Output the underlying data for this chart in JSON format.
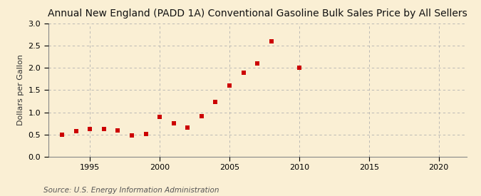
{
  "title": "Annual New England (PADD 1A) Conventional Gasoline Bulk Sales Price by All Sellers",
  "ylabel": "Dollars per Gallon",
  "source": "Source: U.S. Energy Information Administration",
  "background_color": "#faefd4",
  "plot_bg_color": "#faefd4",
  "years": [
    1993,
    1994,
    1995,
    1996,
    1997,
    1998,
    1999,
    2000,
    2001,
    2002,
    2003,
    2004,
    2005,
    2006,
    2007,
    2008,
    2010
  ],
  "values": [
    0.5,
    0.57,
    0.62,
    0.62,
    0.6,
    0.48,
    0.51,
    0.9,
    0.76,
    0.65,
    0.92,
    1.24,
    1.6,
    1.9,
    2.1,
    2.6,
    2.0
  ],
  "marker_color": "#cc0000",
  "marker_size": 4,
  "xlim": [
    1992,
    2022
  ],
  "ylim": [
    0.0,
    3.0
  ],
  "xticks": [
    1995,
    2000,
    2005,
    2010,
    2015,
    2020
  ],
  "yticks": [
    0.0,
    0.5,
    1.0,
    1.5,
    2.0,
    2.5,
    3.0
  ],
  "title_fontsize": 10,
  "ylabel_fontsize": 8,
  "tick_fontsize": 8,
  "source_fontsize": 7.5
}
